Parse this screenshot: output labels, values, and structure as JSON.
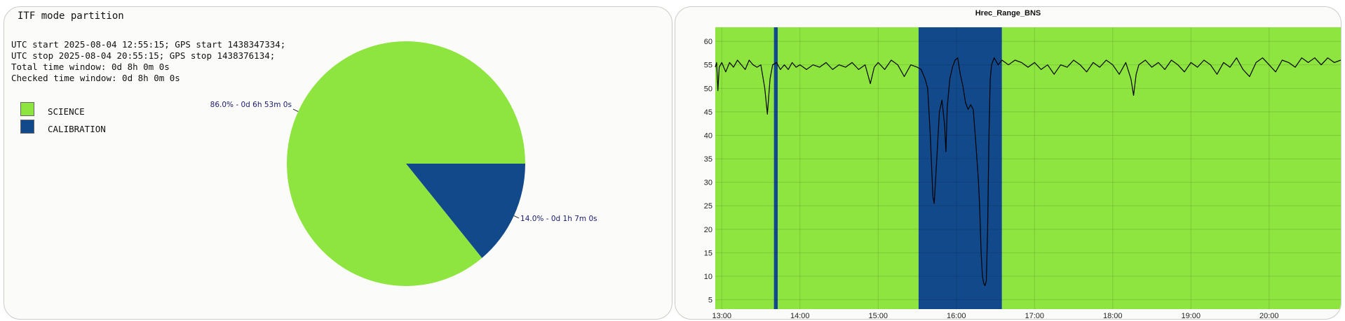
{
  "pie_panel": {
    "title": "ITF mode partition",
    "info_lines": [
      "UTC start 2025-08-04 12:55:15; GPS start 1438347334;",
      "UTC stop 2025-08-04 20:55:15; GPS stop 1438376134;",
      "Total time window: 0d 8h 0m 0s",
      "Checked time window: 0d 8h 0m 0s"
    ],
    "legend": [
      {
        "label": "SCIENCE",
        "color": "#8ee53f"
      },
      {
        "label": "CALIBRATION",
        "color": "#12498b"
      }
    ]
  },
  "timeseries_panel": {
    "title": "Hrec_Range_BNS"
  },
  "chart_data": [
    {
      "type": "pie",
      "title": "ITF mode partition",
      "slices": [
        {
          "name": "SCIENCE",
          "value": 86.0,
          "label": "86.0% - 0d 6h 53m 0s",
          "color": "#8ee53f"
        },
        {
          "name": "CALIBRATION",
          "value": 14.0,
          "label": "14.0% - 0d 1h 7m 0s",
          "color": "#12498b"
        }
      ]
    },
    {
      "type": "line",
      "title": "Hrec_Range_BNS",
      "xlabel": "",
      "ylabel": "",
      "x_range": [
        "12:55",
        "20:55"
      ],
      "ylim": [
        3,
        63
      ],
      "x_ticks": [
        "13:00",
        "14:00",
        "15:00",
        "16:00",
        "17:00",
        "18:00",
        "19:00",
        "20:00"
      ],
      "y_ticks": [
        5,
        10,
        15,
        20,
        25,
        30,
        35,
        40,
        45,
        50,
        55,
        60
      ],
      "grid": true,
      "background_bands": [
        {
          "name": "SCIENCE",
          "from": "12:55",
          "to": "13:40",
          "color": "#8ee53f"
        },
        {
          "name": "CALIBRATION",
          "from": "13:40",
          "to": "13:43",
          "color": "#12498b"
        },
        {
          "name": "SCIENCE",
          "from": "13:43",
          "to": "15:31",
          "color": "#8ee53f"
        },
        {
          "name": "CALIBRATION",
          "from": "15:31",
          "to": "16:35",
          "color": "#12498b"
        },
        {
          "name": "SCIENCE",
          "from": "16:35",
          "to": "20:55",
          "color": "#8ee53f"
        }
      ],
      "series": [
        {
          "color": "#000000",
          "points": [
            [
              "12:55",
              54.5
            ],
            [
              "12:56",
              55.5
            ],
            [
              "12:57",
              49.5
            ],
            [
              "12:58",
              54.5
            ],
            [
              "13:00",
              55.5
            ],
            [
              "13:03",
              53.5
            ],
            [
              "13:06",
              55.5
            ],
            [
              "13:09",
              54.5
            ],
            [
              "13:12",
              56.0
            ],
            [
              "13:15",
              55.0
            ],
            [
              "13:18",
              54.0
            ],
            [
              "13:21",
              56.0
            ],
            [
              "13:24",
              55.0
            ],
            [
              "13:27",
              54.5
            ],
            [
              "13:30",
              55.0
            ],
            [
              "13:33",
              50.0
            ],
            [
              "13:35",
              44.5
            ],
            [
              "13:37",
              52.0
            ],
            [
              "13:39",
              55.0
            ],
            [
              "13:42",
              55.5
            ],
            [
              "13:45",
              54.0
            ],
            [
              "13:48",
              55.0
            ],
            [
              "13:51",
              54.0
            ],
            [
              "13:54",
              55.5
            ],
            [
              "13:57",
              54.5
            ],
            [
              "14:00",
              55.0
            ],
            [
              "14:05",
              54.0
            ],
            [
              "14:10",
              55.0
            ],
            [
              "14:15",
              54.5
            ],
            [
              "14:20",
              55.5
            ],
            [
              "14:25",
              54.0
            ],
            [
              "14:30",
              55.0
            ],
            [
              "14:35",
              54.5
            ],
            [
              "14:40",
              55.5
            ],
            [
              "14:45",
              54.0
            ],
            [
              "14:50",
              55.0
            ],
            [
              "14:54",
              51.0
            ],
            [
              "14:57",
              54.5
            ],
            [
              "15:00",
              55.5
            ],
            [
              "15:05",
              54.0
            ],
            [
              "15:10",
              56.0
            ],
            [
              "15:15",
              55.0
            ],
            [
              "15:20",
              52.5
            ],
            [
              "15:25",
              55.0
            ],
            [
              "15:30",
              54.5
            ],
            [
              "15:33",
              54.0
            ],
            [
              "15:36",
              52.0
            ],
            [
              "15:38",
              50.0
            ],
            [
              "15:40",
              40.0
            ],
            [
              "15:42",
              27.0
            ],
            [
              "15:43",
              25.5
            ],
            [
              "15:45",
              35.0
            ],
            [
              "15:47",
              45.0
            ],
            [
              "15:49",
              47.5
            ],
            [
              "15:51",
              42.0
            ],
            [
              "15:52",
              36.5
            ],
            [
              "15:53",
              46.0
            ],
            [
              "15:55",
              52.0
            ],
            [
              "15:57",
              54.5
            ],
            [
              "15:59",
              56.0
            ],
            [
              "16:01",
              56.5
            ],
            [
              "16:03",
              53.0
            ],
            [
              "16:05",
              50.5
            ],
            [
              "16:07",
              47.0
            ],
            [
              "16:09",
              45.5
            ],
            [
              "16:11",
              46.5
            ],
            [
              "16:13",
              45.5
            ],
            [
              "16:15",
              38.0
            ],
            [
              "16:17",
              30.0
            ],
            [
              "16:18",
              24.0
            ],
            [
              "16:19",
              15.0
            ],
            [
              "16:20",
              10.0
            ],
            [
              "16:21",
              8.5
            ],
            [
              "16:22",
              8.0
            ],
            [
              "16:23",
              9.0
            ],
            [
              "16:24",
              20.0
            ],
            [
              "16:25",
              40.0
            ],
            [
              "16:26",
              52.0
            ],
            [
              "16:27",
              55.0
            ],
            [
              "16:29",
              56.5
            ],
            [
              "16:32",
              55.0
            ],
            [
              "16:35",
              56.0
            ],
            [
              "16:40",
              55.0
            ],
            [
              "16:45",
              56.0
            ],
            [
              "16:50",
              55.5
            ],
            [
              "16:55",
              54.5
            ],
            [
              "17:00",
              55.5
            ],
            [
              "17:05",
              54.0
            ],
            [
              "17:10",
              55.0
            ],
            [
              "17:15",
              53.0
            ],
            [
              "17:20",
              55.0
            ],
            [
              "17:25",
              54.5
            ],
            [
              "17:30",
              56.0
            ],
            [
              "17:35",
              55.0
            ],
            [
              "17:40",
              53.5
            ],
            [
              "17:45",
              55.5
            ],
            [
              "17:50",
              54.5
            ],
            [
              "17:55",
              56.0
            ],
            [
              "18:00",
              55.0
            ],
            [
              "18:05",
              53.0
            ],
            [
              "18:10",
              55.5
            ],
            [
              "18:14",
              52.0
            ],
            [
              "18:16",
              48.5
            ],
            [
              "18:18",
              53.0
            ],
            [
              "18:20",
              55.0
            ],
            [
              "18:25",
              56.0
            ],
            [
              "18:30",
              54.5
            ],
            [
              "18:35",
              55.5
            ],
            [
              "18:40",
              54.0
            ],
            [
              "18:45",
              56.0
            ],
            [
              "18:50",
              55.0
            ],
            [
              "18:55",
              53.5
            ],
            [
              "19:00",
              55.5
            ],
            [
              "19:05",
              54.5
            ],
            [
              "19:10",
              56.0
            ],
            [
              "19:15",
              55.0
            ],
            [
              "19:20",
              53.0
            ],
            [
              "19:25",
              55.5
            ],
            [
              "19:30",
              54.5
            ],
            [
              "19:35",
              56.5
            ],
            [
              "19:40",
              54.0
            ],
            [
              "19:45",
              52.5
            ],
            [
              "19:50",
              55.5
            ],
            [
              "19:55",
              56.5
            ],
            [
              "20:00",
              55.0
            ],
            [
              "20:05",
              53.5
            ],
            [
              "20:10",
              56.0
            ],
            [
              "20:15",
              55.5
            ],
            [
              "20:20",
              54.5
            ],
            [
              "20:25",
              56.5
            ],
            [
              "20:30",
              55.5
            ],
            [
              "20:35",
              56.5
            ],
            [
              "20:40",
              55.0
            ],
            [
              "20:45",
              56.5
            ],
            [
              "20:50",
              55.5
            ],
            [
              "20:55",
              56.0
            ]
          ]
        }
      ]
    }
  ]
}
